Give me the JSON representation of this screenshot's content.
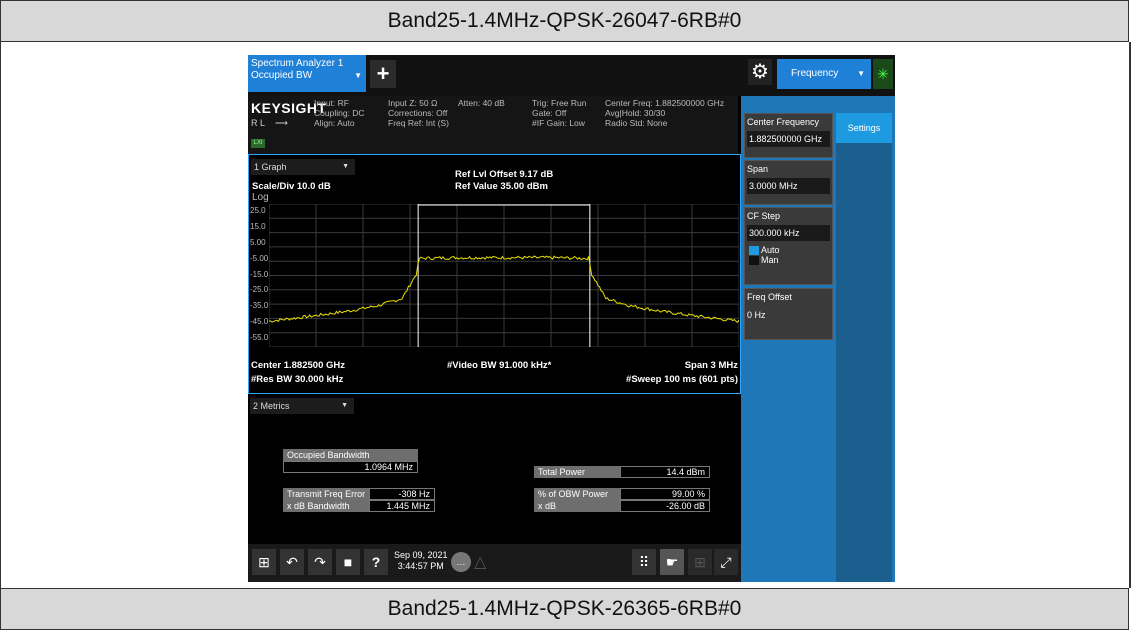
{
  "header_band": "Band25-1.4MHz-QPSK-26047-6RB#0",
  "footer_band": "Band25-1.4MHz-QPSK-26365-6RB#0",
  "tabs": {
    "main_line1": "Spectrum Analyzer 1",
    "main_line2": "Occupied BW",
    "plus": "+",
    "mode": "Frequency"
  },
  "info": {
    "brand": "KEYSIGHT",
    "rl": "R L",
    "lxi": "LXI",
    "col1": "Input: RF\nCoupling: DC\nAlign: Auto",
    "col2": "Input Z: 50 Ω\nCorrections: Off\nFreq Ref: Int (S)",
    "col3": "Atten: 40 dB",
    "col4": "Trig: Free Run\nGate: Off\n#IF Gain: Low",
    "col5": "Center Freq: 1.882500000 GHz\nAvg|Hold: 30/30\nRadio Std: None"
  },
  "graph": {
    "selector": "1 Graph",
    "ref_offset": "Ref Lvl Offset 9.17 dB",
    "ref_value": "Ref Value 35.00 dBm",
    "scale": "Scale/Div 10.0 dB",
    "log": "Log",
    "y_ticks": [
      "25.0",
      "15.0",
      "5.00",
      "-5.00",
      "-15.0",
      "-25.0",
      "-35.0",
      "-45.0",
      "-55.0"
    ],
    "center": "Center 1.882500 GHz",
    "vbw": "#Video BW 91.000 kHz*",
    "span": "Span 3 MHz",
    "rbw": "#Res BW 30.000 kHz",
    "sweep": "#Sweep 100 ms (601 pts)",
    "trace_color": "#e8e000"
  },
  "chart_data": {
    "type": "line",
    "x_label": "",
    "center_ghz": 1.8825,
    "span_mhz": 3,
    "ylim": [
      -65,
      35
    ],
    "series": [
      {
        "values_x_mhz": [
          -1.5,
          -1.2,
          -1.0,
          -0.8,
          -0.65,
          -0.56,
          -0.54,
          -0.3,
          0,
          0.3,
          0.54,
          0.56,
          0.65,
          0.8,
          1.0,
          1.2,
          1.5
        ],
        "values_dbm": [
          -47,
          -43,
          -40,
          -36,
          -31,
          -14,
          -3,
          -2.5,
          -2.5,
          -2.5,
          -3,
          -14,
          -31,
          -36,
          -40,
          -43,
          -47
        ]
      }
    ],
    "obw_markers_mhz": [
      -0.548,
      0.548
    ]
  },
  "metrics": {
    "selector": "2 Metrics",
    "occ_bw_label": "Occupied Bandwidth",
    "occ_bw_value": "1.0964 MHz",
    "total_power_label": "Total Power",
    "total_power_value": "14.4 dBm",
    "tfe_label": "Transmit Freq Error",
    "tfe_value": "-308 Hz",
    "obw_pct_label": "% of OBW Power",
    "obw_pct_value": "99.00 %",
    "xdb_bw_label": "x dB Bandwidth",
    "xdb_bw_value": "1.445 MHz",
    "xdb_label": "x dB",
    "xdb_value": "-26.00 dB"
  },
  "taskbar": {
    "date": "Sep 09, 2021",
    "time": "3:44:57 PM"
  },
  "panel": {
    "center_freq_label": "Center Frequency",
    "center_freq_value": "1.882500000 GHz",
    "settings": "Settings",
    "span_label": "Span",
    "span_value": "3.0000 MHz",
    "cf_step_label": "CF Step",
    "cf_step_value": "300.000 kHz",
    "auto": "Auto",
    "man": "Man",
    "freq_offset_label": "Freq Offset",
    "freq_offset_value": "0 Hz"
  }
}
